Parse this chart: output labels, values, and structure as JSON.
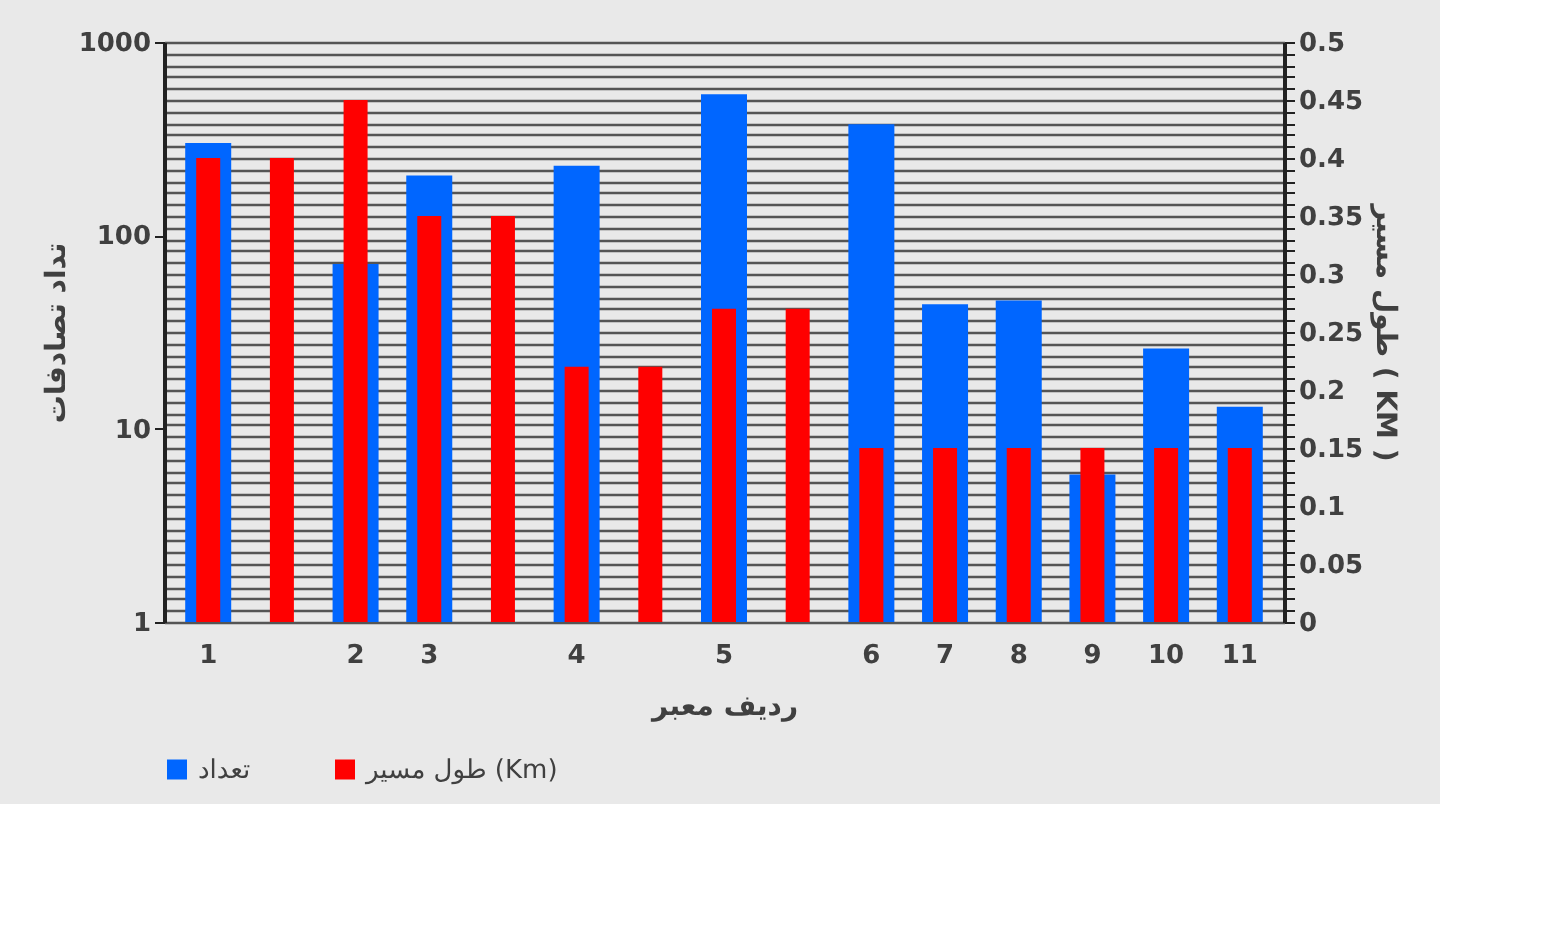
{
  "chart_data": {
    "type": "bar",
    "categories": [
      "1",
      null,
      "2",
      "3",
      null,
      "4",
      null,
      "5",
      null,
      "6",
      "7",
      "8",
      "9",
      "10",
      "11"
    ],
    "xlabel": "ردیف معبر",
    "ylabel": "تداد تصادفات",
    "y2label": "طول مسیر ( KM )",
    "log": "y",
    "ylim": [
      1,
      1000
    ],
    "yticks": [
      1,
      10,
      100,
      1000
    ],
    "y2lim": [
      0,
      0.5
    ],
    "y2ticks": [
      0,
      {
        "value": 0.01,
        "label": null
      },
      {
        "value": 0.02,
        "label": null
      },
      {
        "value": 0.03,
        "label": null
      },
      {
        "value": 0.04,
        "label": null
      },
      0.05,
      {
        "value": 0.06,
        "label": null
      },
      {
        "value": 0.07,
        "label": null
      },
      {
        "value": 0.08,
        "label": null
      },
      {
        "value": 0.09,
        "label": null
      },
      0.1,
      {
        "value": 0.11,
        "label": null
      },
      {
        "value": 0.12,
        "label": null
      },
      {
        "value": 0.13,
        "label": null
      },
      {
        "value": 0.14,
        "label": null
      },
      0.15,
      {
        "value": 0.16,
        "label": null
      },
      {
        "value": 0.17,
        "label": null
      },
      {
        "value": 0.18,
        "label": null
      },
      {
        "value": 0.19,
        "label": null
      },
      0.2,
      {
        "value": 0.21,
        "label": null
      },
      {
        "value": 0.22,
        "label": null
      },
      {
        "value": 0.23,
        "label": null
      },
      {
        "value": 0.24,
        "label": null
      },
      0.25,
      {
        "value": 0.26,
        "label": null
      },
      {
        "value": 0.27,
        "label": null
      },
      {
        "value": 0.28,
        "label": null
      },
      {
        "value": 0.29,
        "label": null
      },
      0.3,
      {
        "value": 0.31,
        "label": null
      },
      {
        "value": 0.32,
        "label": null
      },
      {
        "value": 0.33,
        "label": null
      },
      {
        "value": 0.34,
        "label": null
      },
      0.35,
      {
        "value": 0.36,
        "label": null
      },
      {
        "value": 0.37,
        "label": null
      },
      {
        "value": 0.38,
        "label": null
      },
      {
        "value": 0.39,
        "label": null
      },
      0.4,
      {
        "value": 0.41,
        "label": null
      },
      {
        "value": 0.42,
        "label": null
      },
      {
        "value": 0.43,
        "label": null
      },
      {
        "value": 0.44,
        "label": null
      },
      0.45,
      {
        "value": 0.46,
        "label": null
      },
      {
        "value": 0.47,
        "label": null
      },
      {
        "value": 0.48,
        "label": null
      },
      {
        "value": 0.49,
        "label": null
      },
      0.5
    ],
    "grid": true,
    "legend": "bottom",
    "series": [
      {
        "name": "تعداد",
        "color": "#0066ff",
        "values": [
          300,
          null,
          71,
          204,
          null,
          229,
          null,
          537,
          null,
          376,
          44,
          46,
          5.8,
          26,
          13
        ]
      },
      {
        "name": "طول مسیر (Km)",
        "color": "#ff0000",
        "axis": "y2",
        "values": [
          0.4,
          0.4,
          0.45,
          0.35,
          0.35,
          0.22,
          0.22,
          0.27,
          0.27,
          0.15,
          0.15,
          0.15,
          0.15,
          0.15,
          0.15
        ]
      }
    ]
  }
}
